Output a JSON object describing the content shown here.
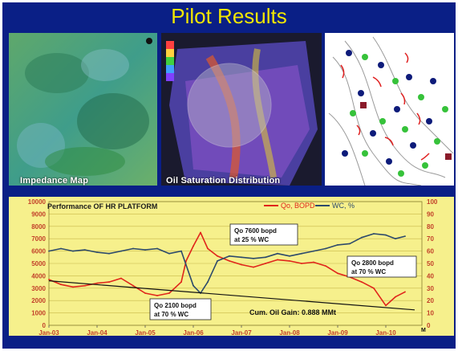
{
  "slide_title": "Pilot Results",
  "panels": [
    {
      "caption": "Impedance Map",
      "icon": "impedance-map-image"
    },
    {
      "caption": "Oil Saturation Distribution",
      "icon": "oil-saturation-image"
    },
    {
      "caption": "",
      "icon": "well-location-map-image"
    }
  ],
  "colors": {
    "background": "#0a1f86",
    "title": "#f2e600",
    "chart_bg": "#f6f08c",
    "oil_series": "#e0251b",
    "wc_series": "#2d4a6b",
    "trend": "#111111"
  },
  "chart_data": {
    "type": "line",
    "title": "Performance OF HR PLATFORM",
    "xlabel": "",
    "ylabel_left": "",
    "ylabel_right": "",
    "x_ticks": [
      "Jan-03",
      "Jan-04",
      "Jan-05",
      "Jan-06",
      "Jan-07",
      "Jan-08",
      "Jan-09",
      "Jan-10"
    ],
    "ylim_left": [
      0,
      10000
    ],
    "yticks_left": [
      0,
      1000,
      2000,
      3000,
      4000,
      5000,
      6000,
      7000,
      8000,
      9000,
      10000
    ],
    "ylim_right": [
      0,
      100
    ],
    "yticks_right": [
      0,
      10,
      20,
      30,
      40,
      50,
      60,
      70,
      80,
      90,
      100
    ],
    "grid": true,
    "legend_position": "top-right",
    "series": [
      {
        "name": "Qo, BOPD",
        "axis": "left",
        "x": [
          2003.0,
          2003.25,
          2003.5,
          2003.75,
          2004.0,
          2004.25,
          2004.5,
          2004.75,
          2005.0,
          2005.25,
          2005.5,
          2005.75,
          2005.85,
          2006.0,
          2006.15,
          2006.3,
          2006.5,
          2006.75,
          2007.0,
          2007.25,
          2007.5,
          2007.75,
          2008.0,
          2008.25,
          2008.5,
          2008.75,
          2009.0,
          2009.25,
          2009.5,
          2009.75,
          2010.0,
          2010.2,
          2010.4
        ],
        "values": [
          3700,
          3300,
          3100,
          3200,
          3400,
          3500,
          3800,
          3200,
          2600,
          2400,
          2600,
          3500,
          5200,
          6400,
          7500,
          6200,
          5600,
          5200,
          4900,
          4700,
          5000,
          5300,
          5200,
          5000,
          5100,
          4800,
          4200,
          3900,
          3500,
          3000,
          1600,
          2300,
          2700
        ]
      },
      {
        "name": "WC, %",
        "axis": "right",
        "x": [
          2003.0,
          2003.25,
          2003.5,
          2003.75,
          2004.0,
          2004.25,
          2004.5,
          2004.75,
          2005.0,
          2005.25,
          2005.5,
          2005.75,
          2006.0,
          2006.15,
          2006.3,
          2006.5,
          2006.75,
          2007.0,
          2007.25,
          2007.5,
          2007.75,
          2008.0,
          2008.25,
          2008.5,
          2008.75,
          2009.0,
          2009.25,
          2009.5,
          2009.75,
          2010.0,
          2010.2,
          2010.4
        ],
        "values": [
          60,
          62,
          60,
          61,
          59,
          58,
          60,
          62,
          61,
          62,
          58,
          60,
          32,
          26,
          35,
          52,
          56,
          55,
          54,
          55,
          58,
          56,
          58,
          60,
          62,
          65,
          66,
          71,
          74,
          73,
          70,
          72
        ]
      },
      {
        "name": "",
        "axis": "left",
        "style": "trend",
        "x": [
          2003.0,
          2010.6
        ],
        "values": [
          3600,
          1250
        ]
      }
    ],
    "annotations": [
      {
        "text": "Qo 7600 bopd at 25 % WC"
      },
      {
        "text": "Qo 2100 bopd at 70 % WC"
      },
      {
        "text": "Qo 2800 bopd at 70 % WC"
      },
      {
        "text": "Cum. Oil Gain: 0.888 MMt"
      }
    ],
    "corner_mark": "M"
  }
}
